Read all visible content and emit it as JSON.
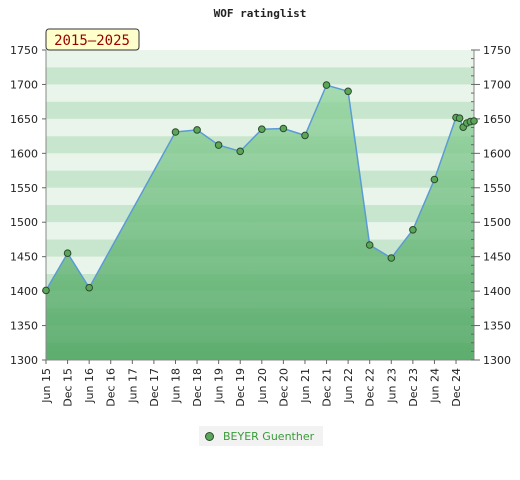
{
  "chart_data": {
    "type": "area",
    "title": "WOF ratinglist",
    "period_label": "2015–2025",
    "ylim": [
      1300,
      1750
    ],
    "y_ticks": [
      1300,
      1350,
      1400,
      1450,
      1500,
      1550,
      1600,
      1650,
      1700,
      1750
    ],
    "x_tick_labels": [
      "Jun 15",
      "Dec 15",
      "Jun 16",
      "Dec 16",
      "Jun 17",
      "Dec 17",
      "Jun 18",
      "Dec 18",
      "Jun 19",
      "Dec 19",
      "Jun 20",
      "Dec 20",
      "Jun 21",
      "Dec 21",
      "Jun 22",
      "Dec 22",
      "Jun 23",
      "Dec 23",
      "Jun 24",
      "Dec 24"
    ],
    "series": [
      {
        "name": "BEYER Guenther",
        "points": [
          {
            "x": "2015-06",
            "y": 1401
          },
          {
            "x": "2015-12",
            "y": 1455
          },
          {
            "x": "2016-06",
            "y": 1405
          },
          {
            "x": "2018-06",
            "y": 1631
          },
          {
            "x": "2018-12",
            "y": 1634
          },
          {
            "x": "2019-06",
            "y": 1612
          },
          {
            "x": "2019-12",
            "y": 1603
          },
          {
            "x": "2020-06",
            "y": 1635
          },
          {
            "x": "2020-12",
            "y": 1636
          },
          {
            "x": "2021-06",
            "y": 1626
          },
          {
            "x": "2021-12",
            "y": 1699
          },
          {
            "x": "2022-06",
            "y": 1690
          },
          {
            "x": "2022-12",
            "y": 1467
          },
          {
            "x": "2023-06",
            "y": 1448
          },
          {
            "x": "2023-12",
            "y": 1489
          },
          {
            "x": "2024-06",
            "y": 1562
          },
          {
            "x": "2024-12",
            "y": 1652
          },
          {
            "x": "2025-01",
            "y": 1651
          },
          {
            "x": "2025-02",
            "y": 1638
          },
          {
            "x": "2025-03",
            "y": 1644
          },
          {
            "x": "2025-04",
            "y": 1646
          },
          {
            "x": "2025-05",
            "y": 1647
          }
        ]
      }
    ],
    "legend": "bottom-center",
    "colors": {
      "line": "#5b9bd5",
      "fill": "#6abf7a",
      "marker": "#5aa75a",
      "marker_edge": "#2c4a2c",
      "band_light": "#eef7f0",
      "band_dark": "#c9e8cf",
      "axis_text": "#222222",
      "period_box": "#ffffcc",
      "period_text": "#990000"
    }
  }
}
